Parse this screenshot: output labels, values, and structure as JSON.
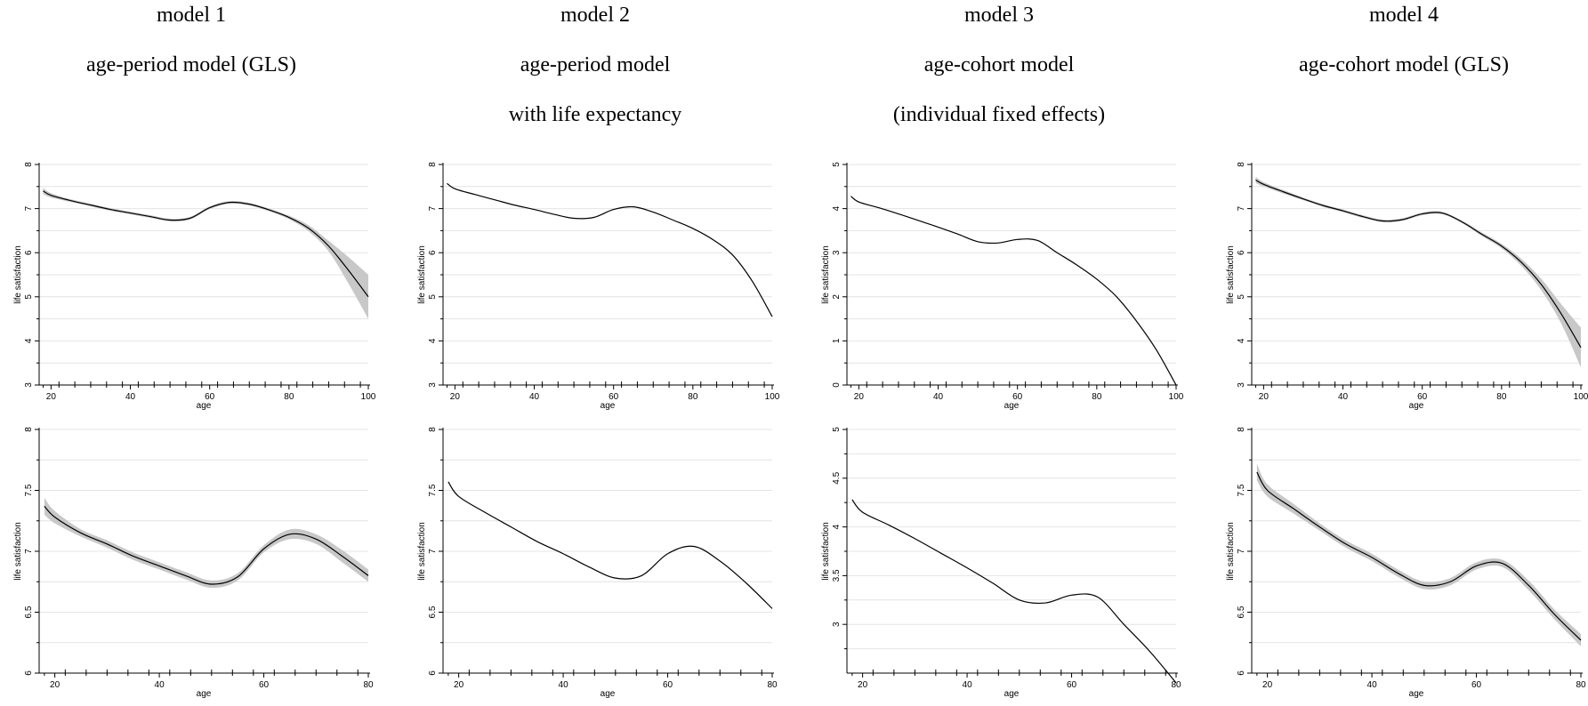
{
  "columns": [
    {
      "lines": [
        "model 1",
        "age-period model (GLS)"
      ]
    },
    {
      "lines": [
        "model 2",
        "age-period model",
        "with life expectancy"
      ]
    },
    {
      "lines": [
        "model 3",
        "age-cohort model",
        "(individual fixed effects)"
      ]
    },
    {
      "lines": [
        "model 4",
        "age-cohort model (GLS)"
      ]
    }
  ],
  "chart_data": [
    {
      "type": "line",
      "panel": "model-1-top",
      "xlabel": "age",
      "ylabel": "life satisfaction",
      "xlim": [
        17,
        100
      ],
      "ylim": [
        3,
        8
      ],
      "xticks": [
        20,
        40,
        60,
        80,
        100
      ],
      "yticks": [
        3,
        4,
        5,
        6,
        7,
        8
      ],
      "grid": true,
      "confidence_band": true,
      "x": [
        18,
        20,
        25,
        30,
        35,
        40,
        45,
        50,
        55,
        60,
        65,
        70,
        75,
        80,
        85,
        90,
        95,
        100
      ],
      "y": [
        7.4,
        7.3,
        7.18,
        7.08,
        6.98,
        6.9,
        6.82,
        6.74,
        6.78,
        7.02,
        7.14,
        7.1,
        6.97,
        6.8,
        6.55,
        6.15,
        5.6,
        5.0
      ],
      "lower": [
        7.33,
        7.25,
        7.15,
        7.05,
        6.95,
        6.87,
        6.79,
        6.71,
        6.75,
        6.99,
        7.11,
        7.07,
        6.94,
        6.76,
        6.48,
        6.03,
        5.3,
        4.5
      ],
      "upper": [
        7.47,
        7.35,
        7.21,
        7.11,
        7.01,
        6.93,
        6.85,
        6.77,
        6.81,
        7.05,
        7.17,
        7.13,
        7.0,
        6.84,
        6.62,
        6.27,
        5.9,
        5.5
      ]
    },
    {
      "type": "line",
      "panel": "model-2-top",
      "xlabel": "age",
      "ylabel": "life satisfaction",
      "xlim": [
        17,
        100
      ],
      "ylim": [
        3,
        8
      ],
      "xticks": [
        20,
        40,
        60,
        80,
        100
      ],
      "yticks": [
        3,
        4,
        5,
        6,
        7,
        8
      ],
      "grid": true,
      "confidence_band": false,
      "x": [
        18,
        20,
        25,
        30,
        35,
        40,
        45,
        50,
        55,
        60,
        65,
        70,
        75,
        80,
        85,
        90,
        95,
        100
      ],
      "y": [
        7.57,
        7.45,
        7.32,
        7.2,
        7.08,
        6.98,
        6.87,
        6.78,
        6.8,
        6.98,
        7.04,
        6.92,
        6.74,
        6.55,
        6.3,
        5.95,
        5.35,
        4.55
      ]
    },
    {
      "type": "line",
      "panel": "model-3-top",
      "xlabel": "age",
      "ylabel": "life satisfaction",
      "xlim": [
        17,
        100
      ],
      "ylim": [
        0,
        5
      ],
      "xticks": [
        20,
        40,
        60,
        80,
        100
      ],
      "yticks": [
        0,
        1,
        2,
        3,
        4,
        5
      ],
      "grid": true,
      "confidence_band": false,
      "x": [
        18,
        20,
        25,
        30,
        35,
        40,
        45,
        50,
        55,
        60,
        65,
        70,
        75,
        80,
        85,
        90,
        95,
        100
      ],
      "y": [
        4.28,
        4.15,
        4.02,
        3.88,
        3.73,
        3.58,
        3.42,
        3.25,
        3.22,
        3.3,
        3.28,
        3.0,
        2.72,
        2.4,
        2.0,
        1.45,
        0.8,
        0.0
      ]
    },
    {
      "type": "line",
      "panel": "model-4-top",
      "xlabel": "age",
      "ylabel": "life satisfaction",
      "xlim": [
        17,
        100
      ],
      "ylim": [
        3,
        8
      ],
      "xticks": [
        20,
        40,
        60,
        80,
        100
      ],
      "yticks": [
        3,
        4,
        5,
        6,
        7,
        8
      ],
      "grid": true,
      "confidence_band": true,
      "x": [
        18,
        20,
        25,
        30,
        35,
        40,
        45,
        50,
        55,
        60,
        65,
        70,
        75,
        80,
        85,
        90,
        95,
        100
      ],
      "y": [
        7.65,
        7.55,
        7.38,
        7.22,
        7.07,
        6.95,
        6.82,
        6.72,
        6.75,
        6.88,
        6.9,
        6.7,
        6.42,
        6.15,
        5.78,
        5.28,
        4.62,
        3.85
      ],
      "lower": [
        7.58,
        7.5,
        7.34,
        7.19,
        7.04,
        6.92,
        6.79,
        6.69,
        6.72,
        6.85,
        6.87,
        6.67,
        6.38,
        6.1,
        5.7,
        5.15,
        4.4,
        3.4
      ],
      "upper": [
        7.72,
        7.6,
        7.42,
        7.25,
        7.1,
        6.98,
        6.85,
        6.75,
        6.78,
        6.91,
        6.93,
        6.73,
        6.46,
        6.2,
        5.86,
        5.41,
        4.84,
        4.3
      ]
    },
    {
      "type": "line",
      "panel": "model-1-bottom",
      "xlabel": "age",
      "ylabel": "life satisfaction",
      "xlim": [
        17,
        80
      ],
      "ylim": [
        6,
        8
      ],
      "xticks": [
        20,
        40,
        60,
        80
      ],
      "yticks": [
        6,
        6.5,
        7,
        7.5,
        8
      ],
      "grid": true,
      "confidence_band": true,
      "x": [
        18,
        20,
        25,
        30,
        35,
        40,
        45,
        50,
        55,
        60,
        65,
        70,
        75,
        80
      ],
      "y": [
        7.37,
        7.28,
        7.15,
        7.06,
        6.96,
        6.88,
        6.8,
        6.73,
        6.79,
        7.02,
        7.14,
        7.1,
        6.96,
        6.8
      ],
      "lower": [
        7.3,
        7.23,
        7.12,
        7.03,
        6.93,
        6.85,
        6.77,
        6.7,
        6.76,
        6.99,
        7.1,
        7.06,
        6.91,
        6.75
      ],
      "upper": [
        7.44,
        7.33,
        7.18,
        7.09,
        6.99,
        6.91,
        6.83,
        6.76,
        6.82,
        7.05,
        7.18,
        7.14,
        7.01,
        6.85
      ]
    },
    {
      "type": "line",
      "panel": "model-2-bottom",
      "xlabel": "age",
      "ylabel": "life satisfaction",
      "xlim": [
        17,
        80
      ],
      "ylim": [
        6,
        8
      ],
      "xticks": [
        20,
        40,
        60,
        80
      ],
      "yticks": [
        6,
        6.5,
        7,
        7.5,
        8
      ],
      "grid": true,
      "confidence_band": false,
      "x": [
        18,
        20,
        25,
        30,
        35,
        40,
        45,
        50,
        55,
        60,
        65,
        70,
        75,
        80
      ],
      "y": [
        7.57,
        7.45,
        7.32,
        7.2,
        7.08,
        6.98,
        6.87,
        6.78,
        6.8,
        6.98,
        7.04,
        6.92,
        6.74,
        6.53
      ]
    },
    {
      "type": "line",
      "panel": "model-3-bottom",
      "xlabel": "age",
      "ylabel": "life satisfaction",
      "xlim": [
        17,
        80
      ],
      "ylim": [
        2.5,
        5
      ],
      "xticks": [
        20,
        40,
        60,
        80
      ],
      "yticks": [
        3,
        3.5,
        4,
        4.5,
        5
      ],
      "grid": true,
      "confidence_band": false,
      "x": [
        18,
        20,
        25,
        30,
        35,
        40,
        45,
        50,
        55,
        60,
        65,
        70,
        75,
        80
      ],
      "y": [
        4.28,
        4.15,
        4.02,
        3.88,
        3.73,
        3.58,
        3.42,
        3.25,
        3.22,
        3.3,
        3.28,
        3.0,
        2.72,
        2.4
      ]
    },
    {
      "type": "line",
      "panel": "model-4-bottom",
      "xlabel": "age",
      "ylabel": "life satisfaction",
      "xlim": [
        17,
        80
      ],
      "ylim": [
        6,
        8
      ],
      "xticks": [
        20,
        40,
        60,
        80
      ],
      "yticks": [
        6,
        6.5,
        7,
        7.5,
        8
      ],
      "grid": true,
      "confidence_band": true,
      "x": [
        18,
        20,
        25,
        30,
        35,
        40,
        45,
        50,
        55,
        60,
        65,
        70,
        75,
        80
      ],
      "y": [
        7.65,
        7.5,
        7.35,
        7.2,
        7.06,
        6.95,
        6.82,
        6.72,
        6.75,
        6.88,
        6.9,
        6.72,
        6.48,
        6.27
      ],
      "lower": [
        7.58,
        7.45,
        7.31,
        7.17,
        7.03,
        6.92,
        6.79,
        6.69,
        6.72,
        6.85,
        6.87,
        6.68,
        6.44,
        6.22
      ],
      "upper": [
        7.72,
        7.55,
        7.39,
        7.23,
        7.09,
        6.98,
        6.85,
        6.75,
        6.78,
        6.91,
        6.93,
        6.76,
        6.52,
        6.32
      ]
    }
  ]
}
